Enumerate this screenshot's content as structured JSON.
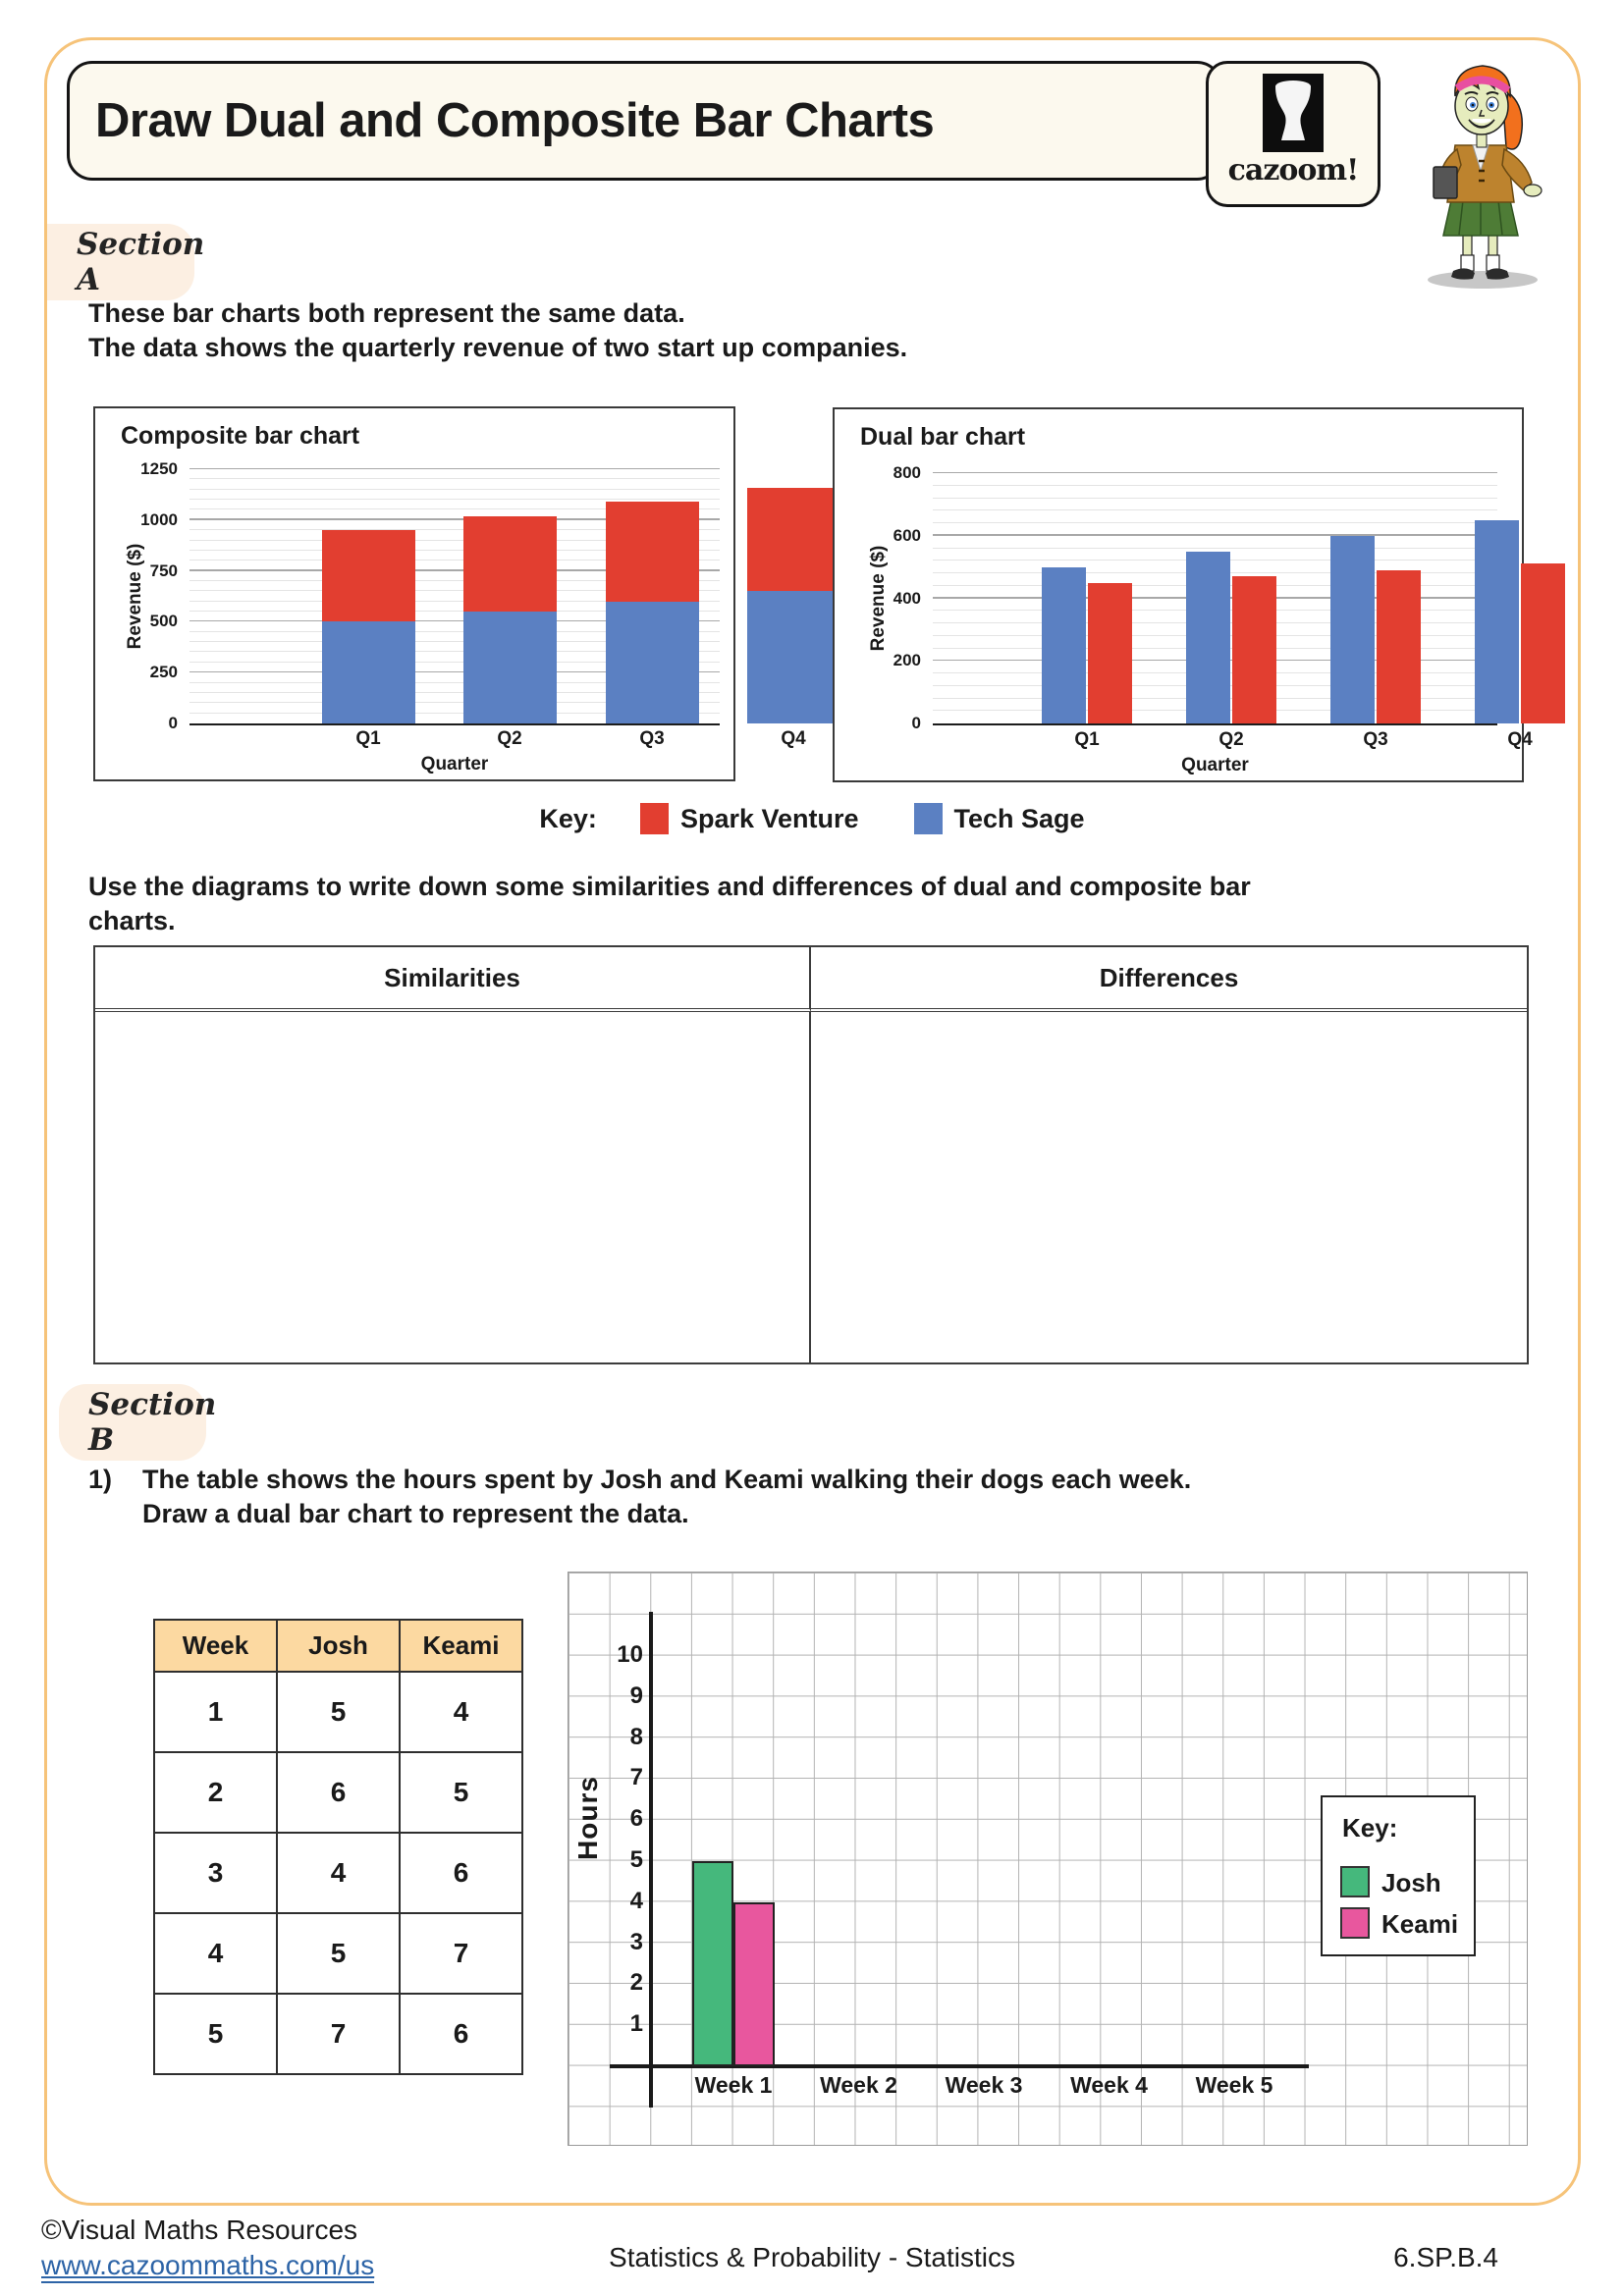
{
  "header": {
    "title": "Draw Dual and Composite Bar Charts",
    "logo_text": "cazoom!"
  },
  "section_a": {
    "label": "Section A",
    "intro": [
      "These bar charts both represent the same data.",
      "The data shows the quarterly revenue of two start up companies."
    ],
    "key": {
      "label": "Key:",
      "items": [
        {
          "name": "Spark Venture",
          "color": "#e23e30"
        },
        {
          "name": "Tech Sage",
          "color": "#5b80c2"
        }
      ]
    },
    "instruction": [
      "Use the diagrams to write down some similarities and differences of dual and composite bar",
      "charts."
    ],
    "compare_table": {
      "headers": [
        "Similarities",
        "Differences"
      ]
    }
  },
  "section_b": {
    "label": "Section B",
    "question": {
      "number": "1)",
      "lines": [
        "The table shows the hours spent by Josh and Keami walking their dogs each week.",
        "Draw a dual bar chart to represent the data."
      ]
    },
    "data_table": {
      "headers": [
        "Week",
        "Josh",
        "Keami"
      ],
      "rows": [
        [
          "1",
          "5",
          "4"
        ],
        [
          "2",
          "6",
          "5"
        ],
        [
          "3",
          "4",
          "6"
        ],
        [
          "4",
          "5",
          "7"
        ],
        [
          "5",
          "7",
          "6"
        ]
      ]
    },
    "key": {
      "label": "Key:",
      "items": [
        {
          "name": "Josh",
          "color": "#45b87c"
        },
        {
          "name": "Keami",
          "color": "#e8579e"
        }
      ]
    }
  },
  "chart_data": [
    {
      "id": "composite",
      "type": "bar",
      "stacking": "stacked",
      "title": "Composite bar chart",
      "categories": [
        "Q1",
        "Q2",
        "Q3",
        "Q4"
      ],
      "series": [
        {
          "name": "Tech Sage",
          "color": "#5b80c2",
          "values": [
            500,
            550,
            600,
            650
          ]
        },
        {
          "name": "Spark Venture",
          "color": "#e23e30",
          "values": [
            450,
            470,
            490,
            510
          ]
        }
      ],
      "xlabel": "Quarter",
      "ylabel": "Revenue ($)",
      "ylim": [
        0,
        1250
      ],
      "yticks": [
        0,
        250,
        500,
        750,
        1000,
        1250
      ],
      "minor_grid_step": 50,
      "grid": true
    },
    {
      "id": "dual",
      "type": "bar",
      "stacking": "grouped",
      "title": "Dual bar chart",
      "categories": [
        "Q1",
        "Q2",
        "Q3",
        "Q4"
      ],
      "series": [
        {
          "name": "Tech Sage",
          "color": "#5b80c2",
          "values": [
            500,
            550,
            600,
            650
          ]
        },
        {
          "name": "Spark Venture",
          "color": "#e23e30",
          "values": [
            450,
            470,
            490,
            510
          ]
        }
      ],
      "xlabel": "Quarter",
      "ylabel": "Revenue ($)",
      "ylim": [
        0,
        800
      ],
      "yticks": [
        0,
        200,
        400,
        600,
        800
      ],
      "minor_grid_step": 40,
      "grid": true
    },
    {
      "id": "practice",
      "type": "bar",
      "stacking": "grouped",
      "title": "",
      "categories": [
        "Week 1",
        "Week 2",
        "Week 3",
        "Week 4",
        "Week 5"
      ],
      "series": [
        {
          "name": "Josh",
          "color": "#45b87c",
          "values": [
            5,
            null,
            null,
            null,
            null
          ]
        },
        {
          "name": "Keami",
          "color": "#e8579e",
          "values": [
            4,
            null,
            null,
            null,
            null
          ]
        }
      ],
      "xlabel": "",
      "ylabel": "Hours",
      "ylim": [
        0,
        10
      ],
      "yticks": [
        1,
        2,
        3,
        4,
        5,
        6,
        7,
        8,
        9,
        10
      ],
      "grid": "square-graph-paper",
      "note": "Only Week 1 bars are drawn; Weeks 2-5 are blank for the student to complete"
    }
  ],
  "footer": {
    "copyright": "©Visual Maths Resources",
    "link": "www.cazoommaths.com/us",
    "center": "Statistics & Probability - Statistics",
    "standard": "6.SP.B.4"
  }
}
